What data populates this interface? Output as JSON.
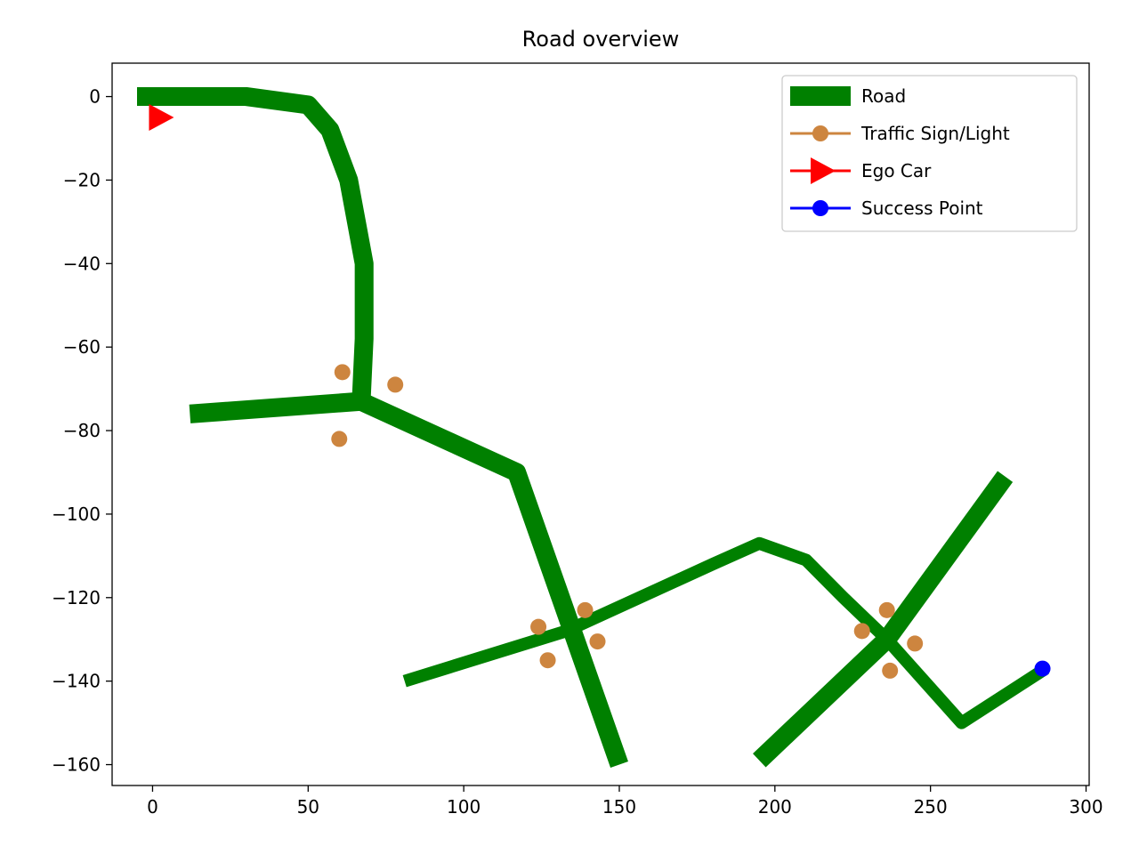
{
  "chart_data": {
    "type": "line",
    "title": "Road overview",
    "xlabel": "",
    "ylabel": "",
    "xlim": [
      -13,
      301
    ],
    "ylim": [
      -165,
      8
    ],
    "xticks": [
      0,
      50,
      100,
      150,
      200,
      250,
      300
    ],
    "yticks": [
      0,
      -20,
      -40,
      -60,
      -80,
      -100,
      -120,
      -140,
      -160
    ],
    "xtick_labels": [
      "0",
      "50",
      "100",
      "150",
      "200",
      "250",
      "300"
    ],
    "ytick_labels": [
      "0",
      "−20",
      "−40",
      "−60",
      "−80",
      "−100",
      "−120",
      "−140",
      "−160"
    ],
    "grid": false,
    "legend_position": "top-right",
    "series": [
      {
        "name": "Road",
        "kind": "road",
        "color": "#008000",
        "segments": [
          {
            "width": 4.5,
            "points": [
              [
                -5,
                0
              ],
              [
                30,
                0
              ],
              [
                50,
                -2
              ],
              [
                57,
                -8
              ],
              [
                63,
                -20
              ],
              [
                68,
                -40
              ],
              [
                68,
                -58
              ],
              [
                67,
                -74
              ]
            ]
          },
          {
            "width": 4.5,
            "points": [
              [
                12,
                -76
              ],
              [
                67,
                -73
              ],
              [
                117,
                -90
              ],
              [
                150,
                -160
              ]
            ]
          },
          {
            "width": 3.0,
            "points": [
              [
                81,
                -140
              ],
              [
                133,
                -128
              ],
              [
                180,
                -112
              ],
              [
                195,
                -107
              ],
              [
                210,
                -111
              ],
              [
                222,
                -120
              ],
              [
                236,
                -130
              ]
            ]
          },
          {
            "width": 4.5,
            "points": [
              [
                195,
                -159
              ],
              [
                236,
                -130
              ],
              [
                274,
                -91
              ]
            ]
          },
          {
            "width": 3.0,
            "points": [
              [
                236,
                -130
              ],
              [
                260,
                -150
              ],
              [
                287,
                -137
              ]
            ]
          }
        ]
      },
      {
        "name": "Traffic Sign/Light",
        "kind": "points",
        "color": "#cd853f",
        "points": [
          [
            61,
            -66
          ],
          [
            78,
            -69
          ],
          [
            60,
            -82
          ],
          [
            124,
            -127
          ],
          [
            139,
            -123
          ],
          [
            127,
            -135
          ],
          [
            143,
            -130.5
          ],
          [
            228,
            -128
          ],
          [
            236,
            -123
          ],
          [
            237,
            -137.5
          ],
          [
            245,
            -131
          ]
        ]
      },
      {
        "name": "Ego Car",
        "kind": "marker",
        "color": "#ff0000",
        "points": [
          [
            2,
            -5
          ]
        ]
      },
      {
        "name": "Success Point",
        "kind": "points",
        "color": "#0000ff",
        "points": [
          [
            286,
            -137
          ]
        ]
      }
    ]
  }
}
